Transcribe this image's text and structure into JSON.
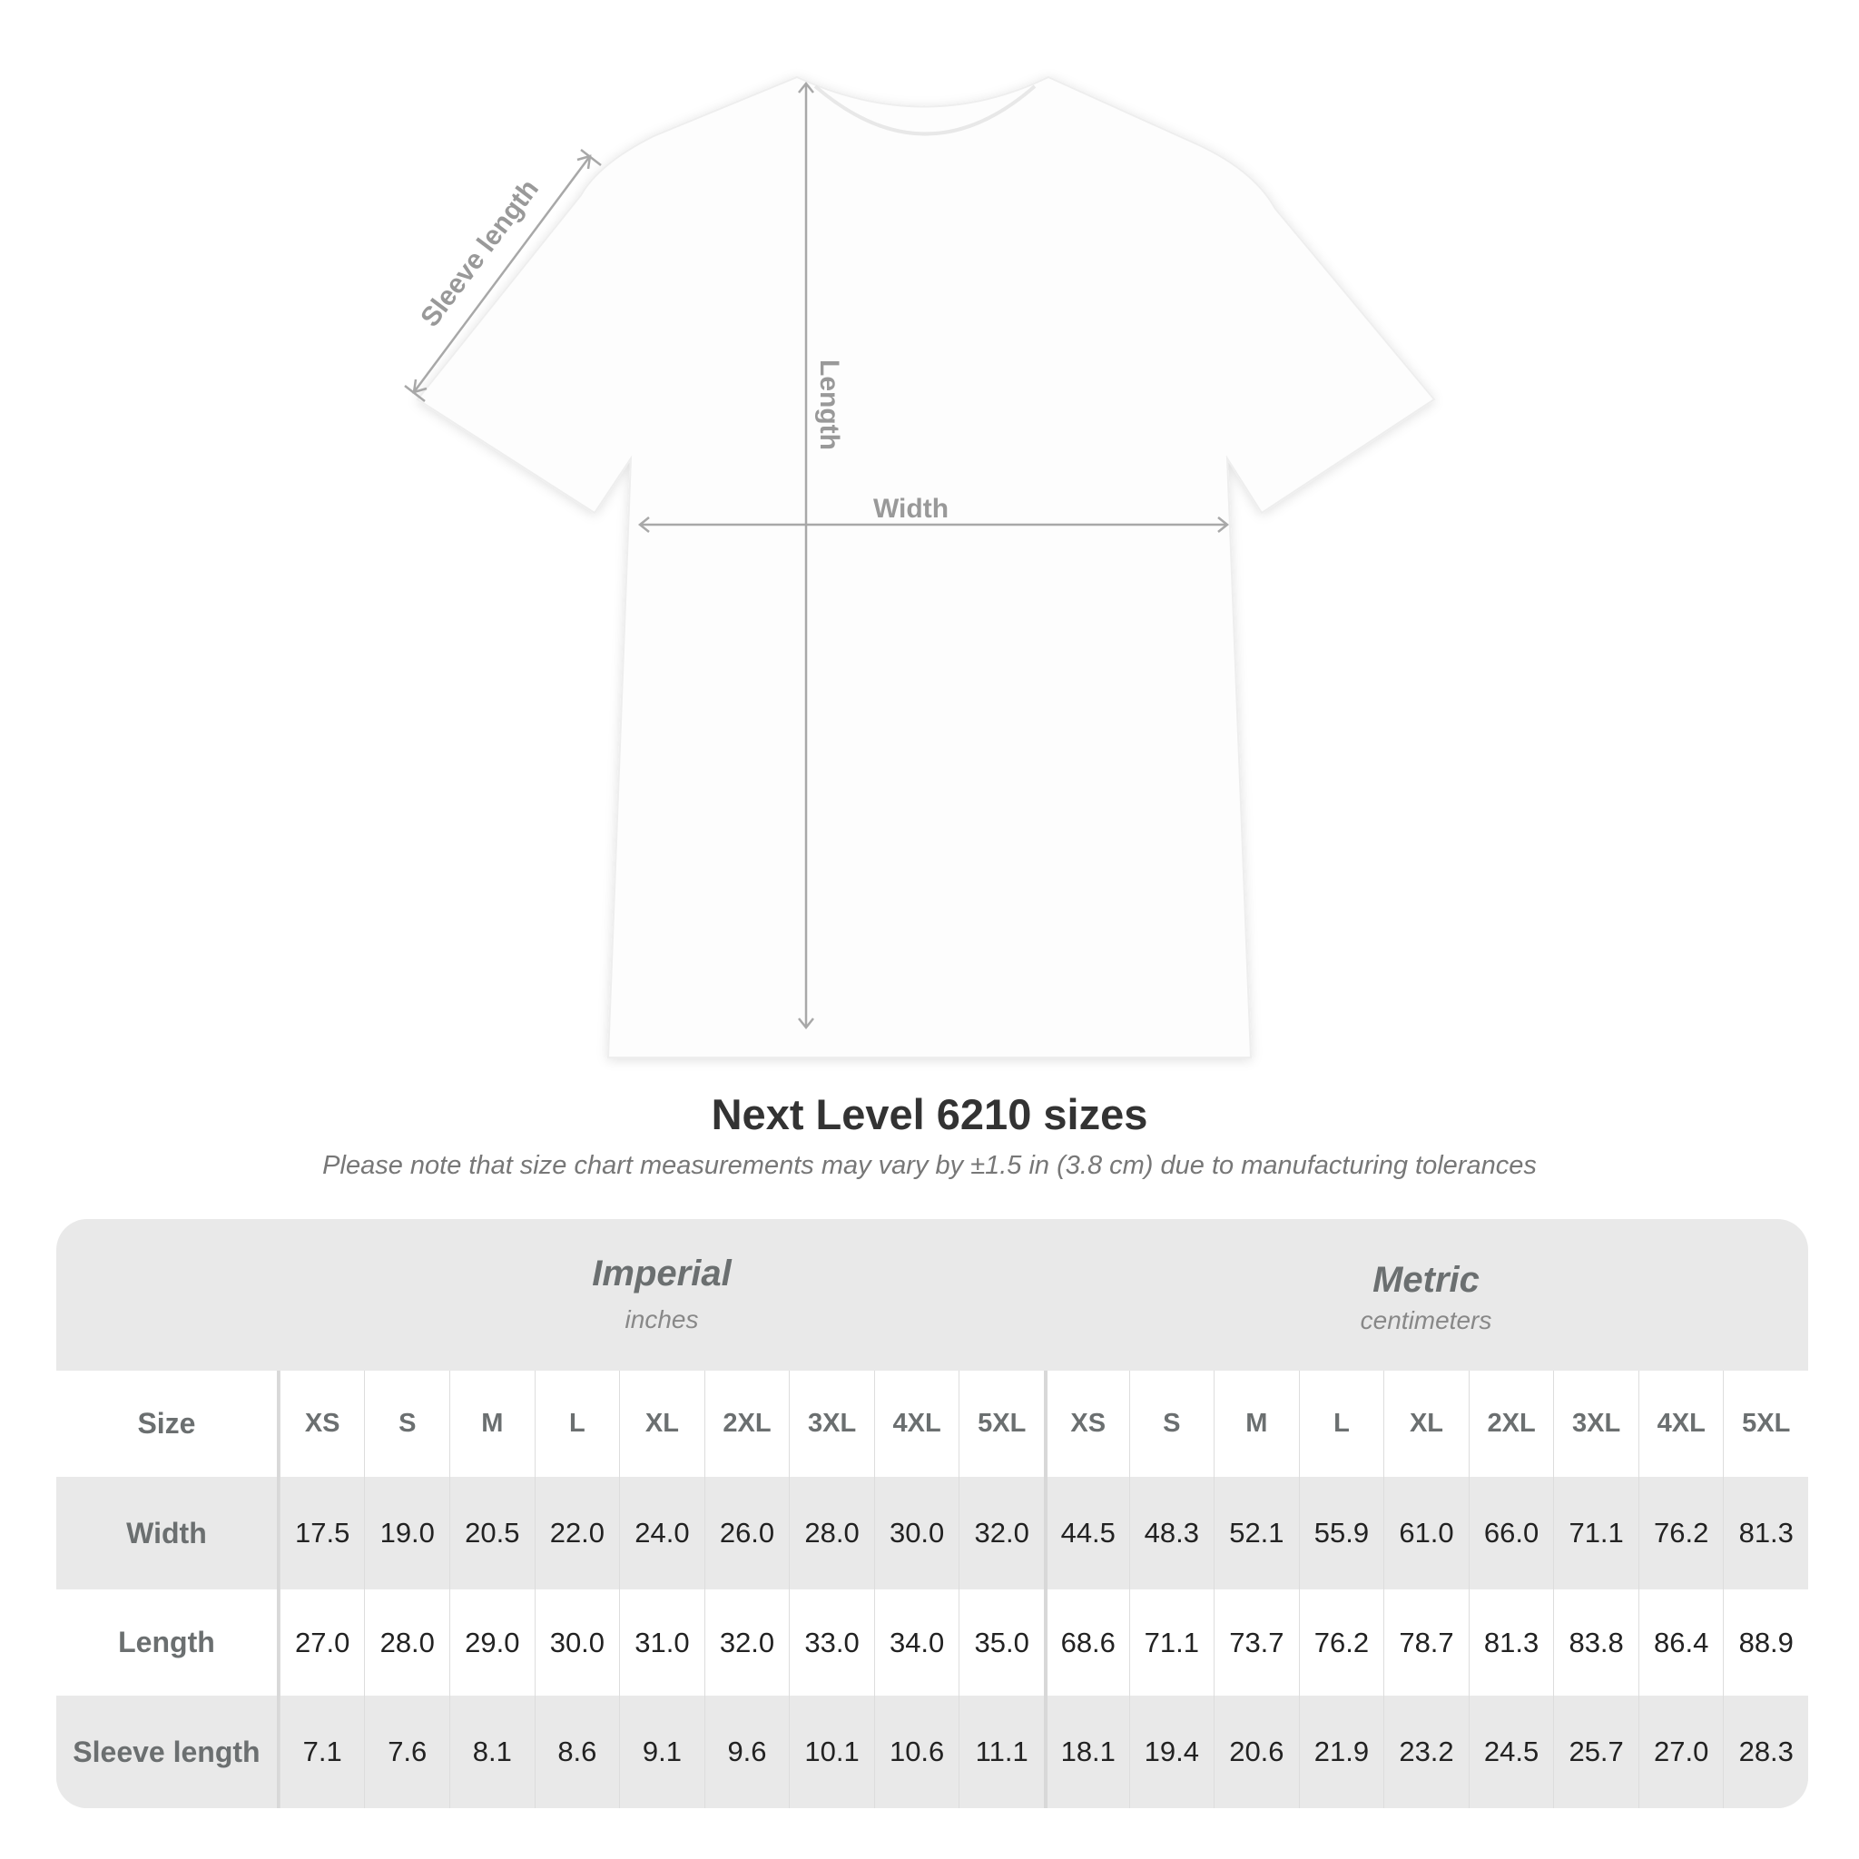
{
  "diagram": {
    "sleeve_label": "Sleeve length",
    "length_label": "Length",
    "width_label": "Width"
  },
  "title": "Next Level 6210 sizes",
  "note": "Please note that size chart measurements may vary by ±1.5 in (3.8 cm) due to manufacturing tolerances",
  "table": {
    "imperial": {
      "name": "Imperial",
      "unit": "inches"
    },
    "metric": {
      "name": "Metric",
      "unit": "centimeters"
    },
    "size_label": "Size",
    "sizes": [
      "XS",
      "S",
      "M",
      "L",
      "XL",
      "2XL",
      "3XL",
      "4XL",
      "5XL"
    ],
    "rows": [
      {
        "label": "Width",
        "imperial": [
          "17.5",
          "19.0",
          "20.5",
          "22.0",
          "24.0",
          "26.0",
          "28.0",
          "30.0",
          "32.0"
        ],
        "metric": [
          "44.5",
          "48.3",
          "52.1",
          "55.9",
          "61.0",
          "66.0",
          "71.1",
          "76.2",
          "81.3"
        ]
      },
      {
        "label": "Length",
        "imperial": [
          "27.0",
          "28.0",
          "29.0",
          "30.0",
          "31.0",
          "32.0",
          "33.0",
          "34.0",
          "35.0"
        ],
        "metric": [
          "68.6",
          "71.1",
          "73.7",
          "76.2",
          "78.7",
          "81.3",
          "83.8",
          "86.4",
          "88.9"
        ]
      },
      {
        "label": "Sleeve length",
        "imperial": [
          "7.1",
          "7.6",
          "8.1",
          "8.6",
          "9.1",
          "9.6",
          "10.1",
          "10.6",
          "11.1"
        ],
        "metric": [
          "18.1",
          "19.4",
          "20.6",
          "21.9",
          "23.2",
          "24.5",
          "25.7",
          "27.0",
          "28.3"
        ]
      }
    ]
  }
}
